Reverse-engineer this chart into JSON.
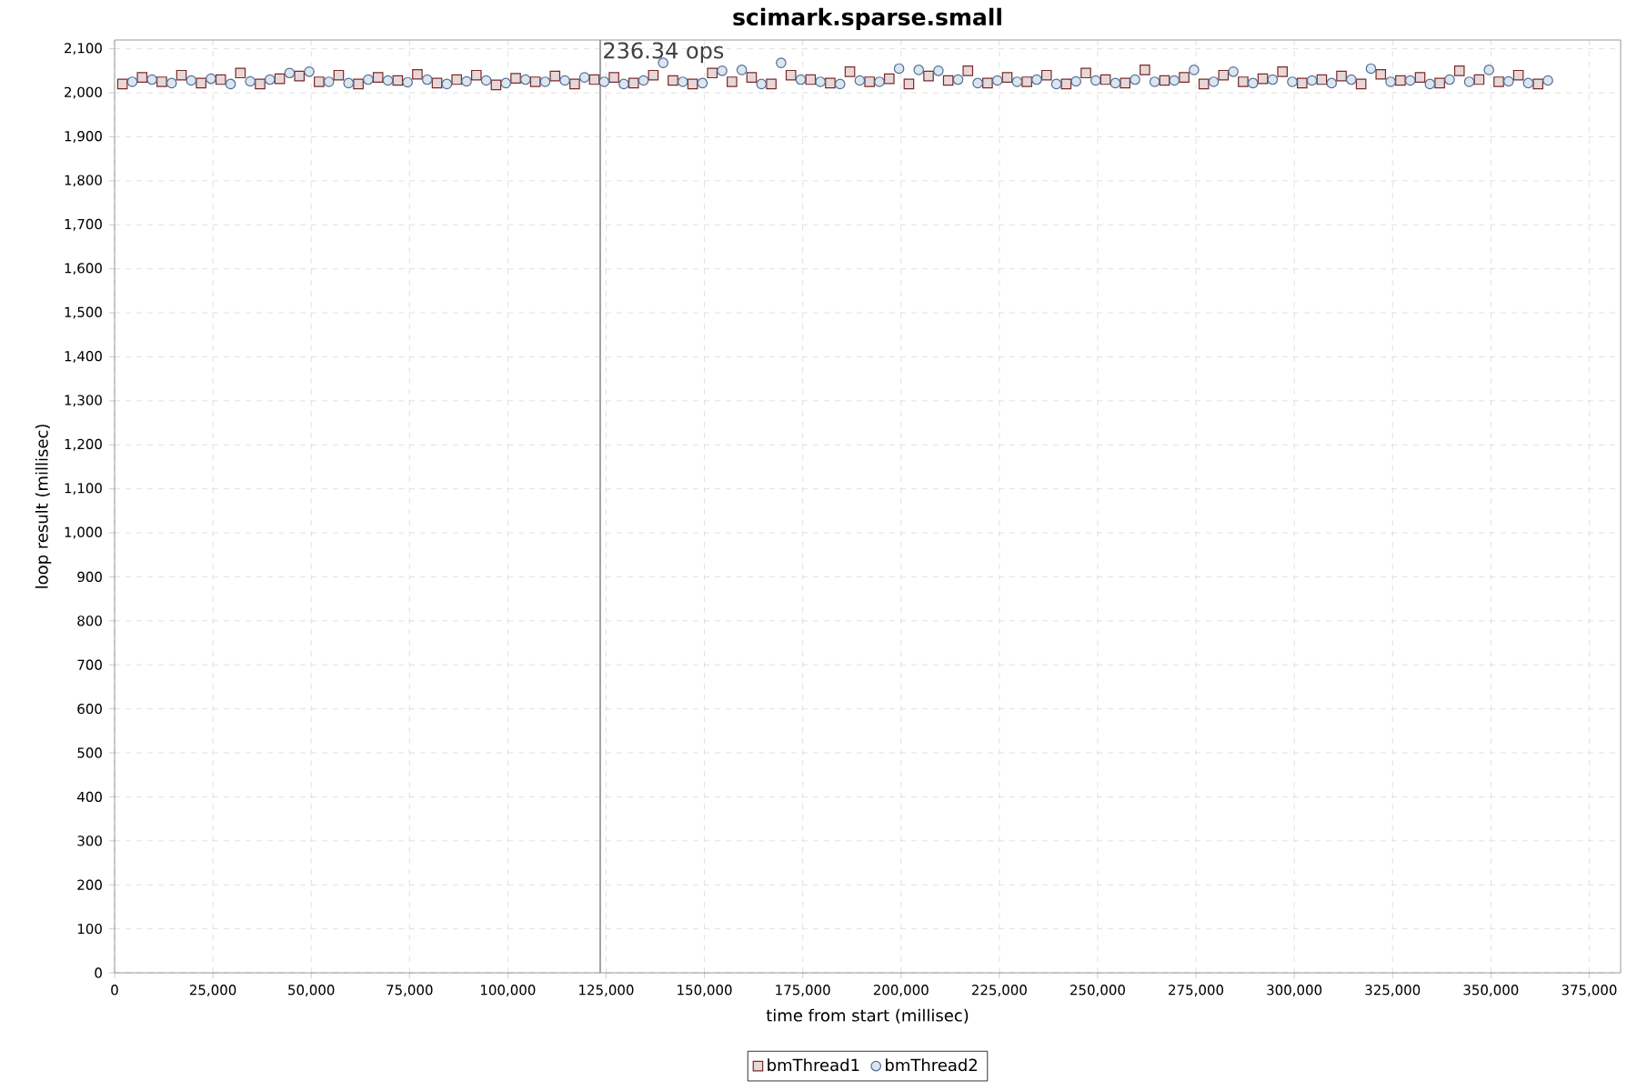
{
  "chart_data": {
    "type": "scatter",
    "title": "scimark.sparse.small",
    "xlabel": "time from start (millisec)",
    "ylabel": "loop result (millisec)",
    "xlim": [
      0,
      383000
    ],
    "ylim": [
      0,
      2120
    ],
    "xticks": [
      0,
      {
        "value": 25000,
        "label": "25,000"
      },
      {
        "value": 50000,
        "label": "50,000"
      },
      {
        "value": 75000,
        "label": "75,000"
      },
      {
        "value": 100000,
        "label": "100,000"
      },
      {
        "value": 125000,
        "label": "125,000"
      },
      {
        "value": 150000,
        "label": "150,000"
      },
      {
        "value": 175000,
        "label": "175,000"
      },
      {
        "value": 200000,
        "label": "200,000"
      },
      {
        "value": 225000,
        "label": "225,000"
      },
      {
        "value": 250000,
        "label": "250,000"
      },
      {
        "value": 275000,
        "label": "275,000"
      },
      {
        "value": 300000,
        "label": "300,000"
      },
      {
        "value": 325000,
        "label": "325,000"
      },
      {
        "value": 350000,
        "label": "350,000"
      },
      {
        "value": 375000,
        "label": "375,000"
      }
    ],
    "yticks": [
      0,
      100,
      200,
      300,
      400,
      500,
      600,
      700,
      800,
      900,
      {
        "value": 1000,
        "label": "1,000"
      },
      {
        "value": 1100,
        "label": "1,100"
      },
      {
        "value": 1200,
        "label": "1,200"
      },
      {
        "value": 1300,
        "label": "1,300"
      },
      {
        "value": 1400,
        "label": "1,400"
      },
      {
        "value": 1500,
        "label": "1,500"
      },
      {
        "value": 1600,
        "label": "1,600"
      },
      {
        "value": 1700,
        "label": "1,700"
      },
      {
        "value": 1800,
        "label": "1,800"
      },
      {
        "value": 1900,
        "label": "1,900"
      },
      {
        "value": 2000,
        "label": "2,000"
      },
      {
        "value": 2100,
        "label": "2,100"
      }
    ],
    "grid": true,
    "legend": "bottom",
    "ref_lines": [
      {
        "axis": "x",
        "value": 123500,
        "label": "236.34 ops",
        "color": "#8c8c8c"
      }
    ],
    "series": [
      {
        "name": "bmThread1",
        "color": "#7a2828",
        "marker": "square",
        "x": [
          2000,
          7000,
          12000,
          17000,
          22000,
          27000,
          32000,
          37000,
          42000,
          47000,
          52000,
          57000,
          62000,
          67000,
          72000,
          77000,
          82000,
          87000,
          92000,
          97000,
          102000,
          107000,
          112000,
          117000,
          122000,
          127000,
          132000,
          137000,
          142000,
          147000,
          152000,
          157000,
          162000,
          167000,
          172000,
          177000,
          182000,
          187000,
          192000,
          197000,
          202000,
          207000,
          212000,
          217000,
          222000,
          227000,
          232000,
          237000,
          242000,
          247000,
          252000,
          257000,
          262000,
          267000,
          272000,
          277000,
          282000,
          287000,
          292000,
          297000,
          302000,
          307000,
          312000,
          317000,
          322000,
          327000,
          332000,
          337000,
          342000,
          347000,
          352000,
          357000,
          362000
        ],
        "values": [
          2020,
          2035,
          2025,
          2040,
          2022,
          2030,
          2045,
          2020,
          2032,
          2038,
          2025,
          2040,
          2020,
          2035,
          2028,
          2042,
          2022,
          2030,
          2040,
          2018,
          2033,
          2025,
          2038,
          2020,
          2030,
          2035,
          2022,
          2040,
          2028,
          2020,
          2045,
          2025,
          2035,
          2020,
          2040,
          2030,
          2022,
          2048,
          2025,
          2032,
          2020,
          2038,
          2028,
          2050,
          2022,
          2035,
          2025,
          2040,
          2020,
          2045,
          2030,
          2022,
          2052,
          2028,
          2035,
          2020,
          2040,
          2025,
          2032,
          2048,
          2022,
          2030,
          2038,
          2020,
          2042,
          2028,
          2035,
          2022,
          2050,
          2030,
          2025,
          2040,
          2020
        ]
      },
      {
        "name": "bmThread2",
        "color": "#4a6f9c",
        "marker": "circle",
        "x": [
          4500,
          9500,
          14500,
          19500,
          24500,
          29500,
          34500,
          39500,
          44500,
          49500,
          54500,
          59500,
          64500,
          69500,
          74500,
          79500,
          84500,
          89500,
          94500,
          99500,
          104500,
          109500,
          114500,
          119500,
          124500,
          129500,
          134500,
          139500,
          144500,
          149500,
          154500,
          159500,
          164500,
          169500,
          174500,
          179500,
          184500,
          189500,
          194500,
          199500,
          204500,
          209500,
          214500,
          219500,
          224500,
          229500,
          234500,
          239500,
          244500,
          249500,
          254500,
          259500,
          264500,
          269500,
          274500,
          279500,
          284500,
          289500,
          294500,
          299500,
          304500,
          309500,
          314500,
          319500,
          324500,
          329500,
          334500,
          339500,
          344500,
          349500,
          354500,
          359500,
          364500
        ],
        "values": [
          2025,
          2030,
          2022,
          2028,
          2032,
          2020,
          2026,
          2030,
          2045,
          2048,
          2025,
          2022,
          2030,
          2028,
          2024,
          2030,
          2020,
          2026,
          2028,
          2022,
          2030,
          2025,
          2028,
          2035,
          2025,
          2020,
          2028,
          2068,
          2025,
          2022,
          2050,
          2052,
          2020,
          2068,
          2030,
          2025,
          2020,
          2028,
          2025,
          2055,
          2052,
          2050,
          2030,
          2022,
          2028,
          2025,
          2030,
          2020,
          2026,
          2028,
          2022,
          2030,
          2025,
          2028,
          2052,
          2025,
          2048,
          2022,
          2030,
          2025,
          2028,
          2022,
          2030,
          2055,
          2025,
          2028,
          2020,
          2030,
          2025,
          2052,
          2026,
          2022,
          2028
        ]
      }
    ]
  }
}
